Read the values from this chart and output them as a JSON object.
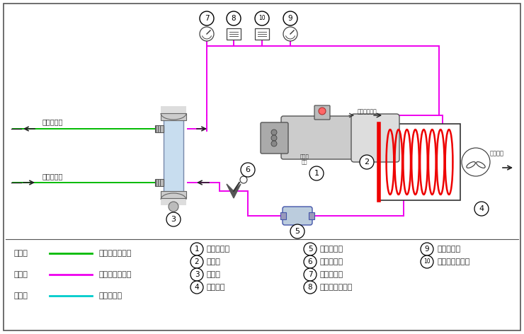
{
  "bg_color": "#ffffff",
  "pink_color": "#EE00EE",
  "green_color": "#00BB00",
  "cyan_color": "#00CCCC",
  "red_color": "#EE0000",
  "legend_items": [
    {
      "label": "绿色线",
      "line_color": "#00BB00",
      "desc": "载冷剂循环回路"
    },
    {
      "label": "红色线",
      "line_color": "#EE00EE",
      "desc": "制冷剂循环回路"
    },
    {
      "label": "蓝色线",
      "line_color": "#00CCCC",
      "desc": "水循环回路"
    }
  ],
  "component_labels": [
    {
      "num": "1",
      "desc": "螺杆压缩机"
    },
    {
      "num": "2",
      "desc": "冷凝器"
    },
    {
      "num": "3",
      "desc": "蒸发器"
    },
    {
      "num": "4",
      "desc": "冷却风扇"
    },
    {
      "num": "5",
      "desc": "干燥过滤器"
    },
    {
      "num": "6",
      "desc": "供液膨胀阀"
    },
    {
      "num": "7",
      "desc": "低压压力表"
    },
    {
      "num": "8",
      "desc": "低压压力控制器"
    },
    {
      "num": "9",
      "desc": "高压压力表"
    },
    {
      "num": "10",
      "desc": "高压压力控制器"
    }
  ]
}
